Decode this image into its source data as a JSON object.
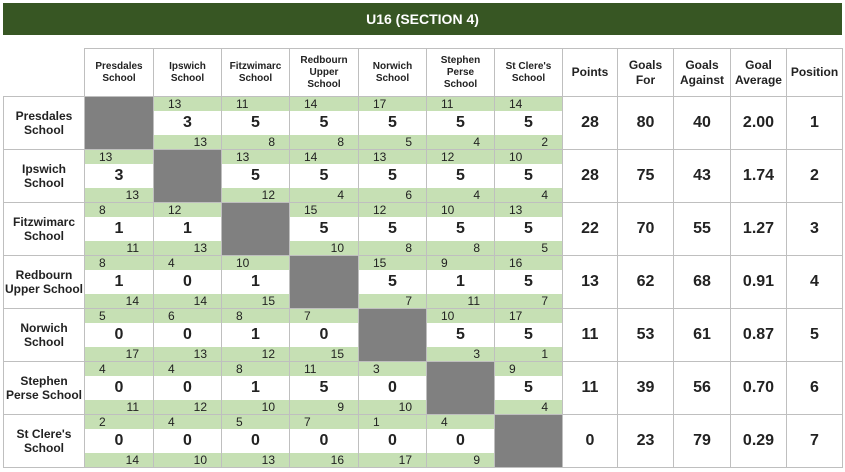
{
  "header": {
    "title": "U16 (SECTION 4)"
  },
  "table": {
    "columns": [
      "Presdales School",
      "Ipswich School",
      "Fitzwimarc School",
      "Redbourn Upper School",
      "Norwich School",
      "Stephen Perse School",
      "St Clere's School",
      "Points",
      "Goals For",
      "Goals Against",
      "Goal Average",
      "Position"
    ],
    "rows": [
      {
        "team": "Presdales School",
        "results": [
          null,
          [
            13,
            3,
            13
          ],
          [
            11,
            5,
            8
          ],
          [
            14,
            5,
            8
          ],
          [
            17,
            5,
            5
          ],
          [
            11,
            5,
            4
          ],
          [
            14,
            5,
            2
          ]
        ],
        "points": 28,
        "goals_for": 80,
        "goals_against": 40,
        "goal_average": "2.00",
        "position": 1
      },
      {
        "team": "Ipswich School",
        "results": [
          [
            13,
            3,
            13
          ],
          null,
          [
            13,
            5,
            12
          ],
          [
            14,
            5,
            4
          ],
          [
            13,
            5,
            6
          ],
          [
            12,
            5,
            4
          ],
          [
            10,
            5,
            4
          ]
        ],
        "points": 28,
        "goals_for": 75,
        "goals_against": 43,
        "goal_average": "1.74",
        "position": 2
      },
      {
        "team": "Fitzwimarc School",
        "results": [
          [
            8,
            1,
            11
          ],
          [
            12,
            1,
            13
          ],
          null,
          [
            15,
            5,
            10
          ],
          [
            12,
            5,
            8
          ],
          [
            10,
            5,
            8
          ],
          [
            13,
            5,
            5
          ]
        ],
        "points": 22,
        "goals_for": 70,
        "goals_against": 55,
        "goal_average": "1.27",
        "position": 3
      },
      {
        "team": "Redbourn Upper School",
        "results": [
          [
            8,
            1,
            14
          ],
          [
            4,
            0,
            14
          ],
          [
            10,
            1,
            15
          ],
          null,
          [
            15,
            5,
            7
          ],
          [
            9,
            1,
            11
          ],
          [
            16,
            5,
            7
          ]
        ],
        "points": 13,
        "goals_for": 62,
        "goals_against": 68,
        "goal_average": "0.91",
        "position": 4
      },
      {
        "team": "Norwich School",
        "results": [
          [
            5,
            0,
            17
          ],
          [
            6,
            0,
            13
          ],
          [
            8,
            1,
            12
          ],
          [
            7,
            0,
            15
          ],
          null,
          [
            10,
            5,
            3
          ],
          [
            17,
            5,
            1
          ]
        ],
        "points": 11,
        "goals_for": 53,
        "goals_against": 61,
        "goal_average": "0.87",
        "position": 5
      },
      {
        "team": "Stephen Perse School",
        "results": [
          [
            4,
            0,
            11
          ],
          [
            4,
            0,
            12
          ],
          [
            8,
            1,
            10
          ],
          [
            11,
            5,
            9
          ],
          [
            3,
            0,
            10
          ],
          null,
          [
            9,
            5,
            4
          ]
        ],
        "points": 11,
        "goals_for": 39,
        "goals_against": 56,
        "goal_average": "0.70",
        "position": 6
      },
      {
        "team": "St Clere's School",
        "results": [
          [
            2,
            0,
            14
          ],
          [
            4,
            0,
            10
          ],
          [
            5,
            0,
            13
          ],
          [
            7,
            0,
            16
          ],
          [
            1,
            0,
            17
          ],
          [
            4,
            0,
            9
          ],
          null
        ],
        "points": 0,
        "goals_for": 23,
        "goals_against": 79,
        "goal_average": "0.29",
        "position": 7
      }
    ]
  }
}
